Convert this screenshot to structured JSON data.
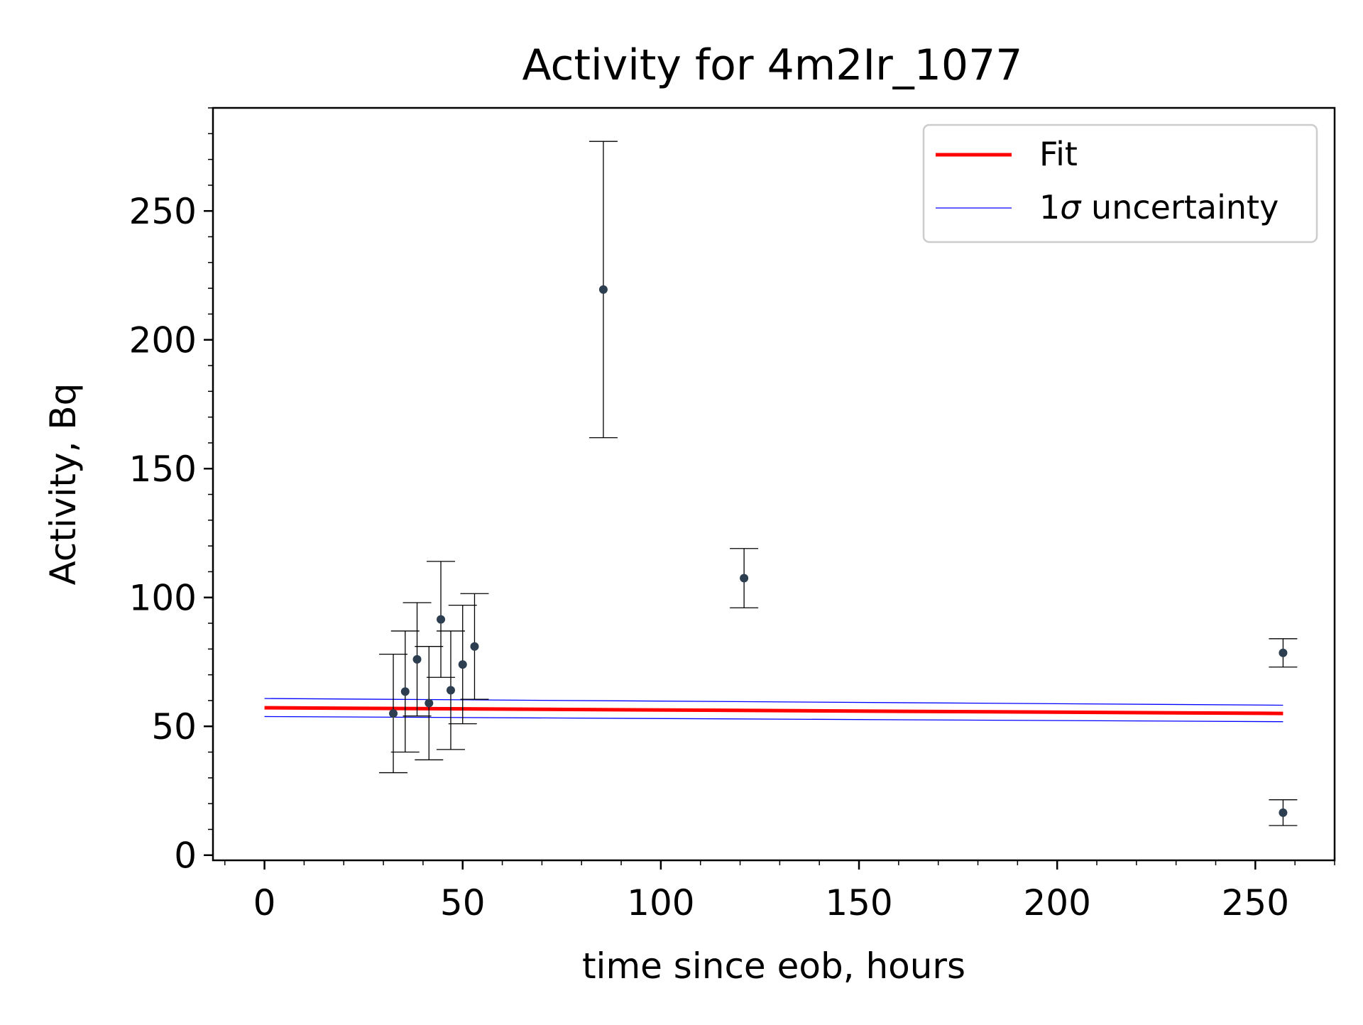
{
  "chart_data": {
    "type": "scatter",
    "title": "Activity for 4m2Ir_1077",
    "xlabel": "time since eob, hours",
    "ylabel": "Activity, Bq",
    "xlim": [
      -13,
      270
    ],
    "ylim": [
      -2,
      290
    ],
    "xticks": [
      0,
      50,
      100,
      150,
      200,
      250
    ],
    "xtick_labels": [
      "0",
      "50",
      "100",
      "150",
      "200",
      "250"
    ],
    "yticks": [
      0,
      50,
      100,
      150,
      200,
      250
    ],
    "ytick_labels": [
      "0",
      "50",
      "100",
      "150",
      "200",
      "250"
    ],
    "x_minor_step": 10,
    "y_minor_step": 10,
    "grid": false,
    "legend_position": "upper-right",
    "legend": {
      "fit": "Fit",
      "unc_prefix": "1",
      "unc_symbol": "σ",
      "unc_suffix": " uncertainty"
    },
    "colors": {
      "fit": "#ff0000",
      "uncertainty": "#0000ff",
      "points": "#2c3e50",
      "errorbars": "#000000"
    },
    "points": [
      {
        "x": 32.5,
        "y": 55,
        "err": 23
      },
      {
        "x": 35.5,
        "y": 63.5,
        "err": 23.5
      },
      {
        "x": 38.5,
        "y": 76,
        "err": 22
      },
      {
        "x": 41.5,
        "y": 59,
        "err": 22
      },
      {
        "x": 44.5,
        "y": 91.5,
        "err": 22.5
      },
      {
        "x": 47,
        "y": 64,
        "err": 23
      },
      {
        "x": 50,
        "y": 74,
        "err": 23
      },
      {
        "x": 53,
        "y": 81,
        "err": 20.5
      },
      {
        "x": 85.5,
        "y": 219.5,
        "err": 57.5
      },
      {
        "x": 121,
        "y": 107.5,
        "err": 11.5
      },
      {
        "x": 257,
        "y": 78.5,
        "err": 5.5
      },
      {
        "x": 257,
        "y": 16.5,
        "err": 5
      }
    ],
    "series": [
      {
        "name": "Fit",
        "x": [
          0,
          257
        ],
        "y": [
          57.2,
          55.0
        ]
      },
      {
        "name": "1σ uncertainty",
        "x": [
          0,
          257
        ],
        "y": [
          60.8,
          58.2
        ]
      },
      {
        "x": [
          0,
          257
        ],
        "y": [
          53.8,
          51.8
        ]
      }
    ]
  }
}
